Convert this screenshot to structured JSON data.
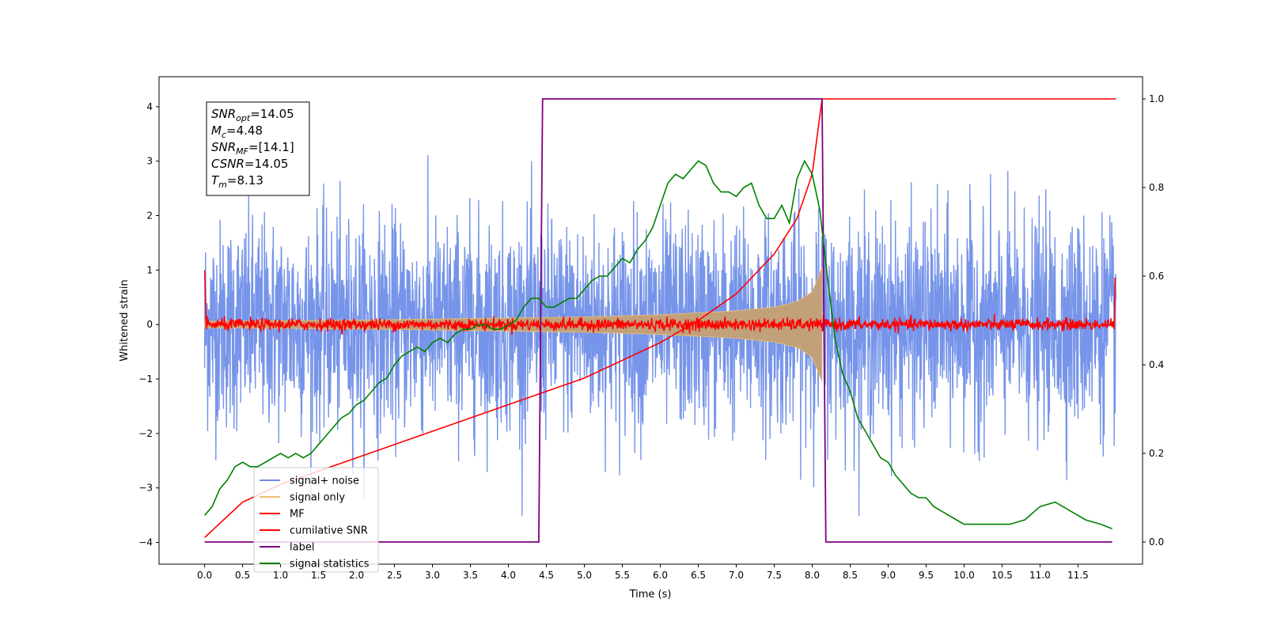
{
  "chart_data": {
    "type": "line",
    "xlabel": "Time (s)",
    "ylabel": "Whitened strain",
    "xlim": [
      -0.6,
      12.35
    ],
    "ylim": [
      -4.4,
      4.55
    ],
    "y2lim": [
      -0.05,
      1.05
    ],
    "x_ticks": [
      "0.0",
      "0.5",
      "1.0",
      "1.5",
      "2.0",
      "2.5",
      "3.0",
      "3.5",
      "4.0",
      "4.5",
      "5.0",
      "5.5",
      "6.0",
      "6.5",
      "7.0",
      "7.5",
      "8.0",
      "8.5",
      "9.0",
      "9.5",
      "10.0",
      "10.5",
      "11.0",
      "11.5"
    ],
    "y_ticks": [
      "4",
      "3",
      "2",
      "1",
      "0",
      "−1",
      "−2",
      "−3",
      "−4"
    ],
    "y2_ticks": [
      "1.0",
      "0.8",
      "0.6",
      "0.4",
      "0.2",
      "0.0"
    ],
    "grid": false,
    "legend_position": "lower-left",
    "annotation": {
      "lines": [
        {
          "sym": "SNR",
          "sub": "opt",
          "val": "=14.05"
        },
        {
          "sym": "M",
          "sub": "c",
          "val": "=4.48"
        },
        {
          "sym": "SNR",
          "sub": "MF",
          "val": "=[14.1]"
        },
        {
          "sym": "CSNR",
          "sub": "",
          "val": "=14.05"
        },
        {
          "sym": "T",
          "sub": "m",
          "val": "=8.13"
        }
      ]
    },
    "series": [
      {
        "name": "signal+ noise",
        "color": "#6f8ee8",
        "kind": "noise",
        "amplitude": 2.2,
        "x_range": [
          0.0,
          12.0
        ]
      },
      {
        "name": "signal only",
        "color": "#f0c070",
        "kind": "chirp",
        "fill": "#c1a07a",
        "envelope_x": [
          0.0,
          1.0,
          2.0,
          3.0,
          4.0,
          5.0,
          6.0,
          7.0,
          7.5,
          7.8,
          8.0,
          8.13
        ],
        "envelope_y": [
          0.06,
          0.07,
          0.08,
          0.1,
          0.12,
          0.14,
          0.18,
          0.25,
          0.32,
          0.42,
          0.6,
          1.05
        ]
      },
      {
        "name": "MF",
        "color": "#ff0000",
        "kind": "mf",
        "x_range": [
          0.0,
          12.0
        ]
      },
      {
        "name": "cumilative SNR",
        "color": "#ff0000",
        "axis": "right",
        "x": [
          0.0,
          0.5,
          1.0,
          1.5,
          2.0,
          2.5,
          3.0,
          3.5,
          4.0,
          4.5,
          5.0,
          5.5,
          6.0,
          6.5,
          7.0,
          7.5,
          7.8,
          8.0,
          8.13,
          8.14,
          12.0
        ],
        "y": [
          0.01,
          0.09,
          0.13,
          0.16,
          0.19,
          0.22,
          0.25,
          0.28,
          0.31,
          0.34,
          0.37,
          0.41,
          0.45,
          0.5,
          0.56,
          0.65,
          0.73,
          0.83,
          1.0,
          1.0,
          1.0
        ]
      },
      {
        "name": "label",
        "color": "#800080",
        "axis": "right",
        "x": [
          0.0,
          4.4,
          4.45,
          8.13,
          8.18,
          11.95
        ],
        "y": [
          0.0,
          0.0,
          1.0,
          1.0,
          0.0,
          0.0
        ]
      },
      {
        "name": "signal statistics",
        "color": "#008000",
        "axis": "right",
        "x": [
          0.0,
          0.1,
          0.2,
          0.3,
          0.4,
          0.5,
          0.6,
          0.7,
          0.8,
          0.9,
          1.0,
          1.1,
          1.2,
          1.3,
          1.4,
          1.5,
          1.6,
          1.7,
          1.8,
          1.9,
          2.0,
          2.1,
          2.2,
          2.3,
          2.4,
          2.5,
          2.6,
          2.7,
          2.8,
          2.9,
          3.0,
          3.1,
          3.2,
          3.3,
          3.4,
          3.5,
          3.6,
          3.7,
          3.8,
          3.9,
          4.0,
          4.1,
          4.2,
          4.3,
          4.4,
          4.5,
          4.6,
          4.7,
          4.8,
          4.9,
          5.0,
          5.1,
          5.2,
          5.3,
          5.4,
          5.5,
          5.6,
          5.7,
          5.8,
          5.9,
          6.0,
          6.1,
          6.2,
          6.3,
          6.4,
          6.5,
          6.6,
          6.7,
          6.8,
          6.9,
          7.0,
          7.1,
          7.2,
          7.3,
          7.4,
          7.5,
          7.6,
          7.7,
          7.8,
          7.9,
          8.0,
          8.1,
          8.2,
          8.3,
          8.4,
          8.5,
          8.6,
          8.7,
          8.8,
          8.9,
          9.0,
          9.1,
          9.2,
          9.3,
          9.4,
          9.5,
          9.6,
          9.7,
          9.8,
          9.9,
          10.0,
          10.2,
          10.4,
          10.6,
          10.8,
          11.0,
          11.2,
          11.4,
          11.6,
          11.8,
          11.95
        ],
        "y": [
          0.06,
          0.08,
          0.12,
          0.14,
          0.17,
          0.18,
          0.17,
          0.17,
          0.18,
          0.19,
          0.2,
          0.19,
          0.2,
          0.19,
          0.2,
          0.22,
          0.24,
          0.26,
          0.28,
          0.29,
          0.31,
          0.32,
          0.34,
          0.36,
          0.37,
          0.4,
          0.42,
          0.43,
          0.44,
          0.43,
          0.45,
          0.46,
          0.45,
          0.47,
          0.48,
          0.48,
          0.49,
          0.49,
          0.48,
          0.48,
          0.49,
          0.5,
          0.53,
          0.55,
          0.55,
          0.53,
          0.53,
          0.54,
          0.55,
          0.55,
          0.57,
          0.59,
          0.6,
          0.6,
          0.62,
          0.64,
          0.63,
          0.66,
          0.68,
          0.71,
          0.76,
          0.81,
          0.83,
          0.82,
          0.84,
          0.86,
          0.85,
          0.81,
          0.79,
          0.79,
          0.78,
          0.8,
          0.81,
          0.76,
          0.73,
          0.73,
          0.76,
          0.72,
          0.82,
          0.86,
          0.83,
          0.75,
          0.6,
          0.46,
          0.38,
          0.34,
          0.28,
          0.25,
          0.22,
          0.19,
          0.18,
          0.15,
          0.13,
          0.11,
          0.1,
          0.1,
          0.08,
          0.07,
          0.06,
          0.05,
          0.04,
          0.04,
          0.04,
          0.04,
          0.05,
          0.08,
          0.09,
          0.07,
          0.05,
          0.04,
          0.03
        ]
      }
    ]
  }
}
